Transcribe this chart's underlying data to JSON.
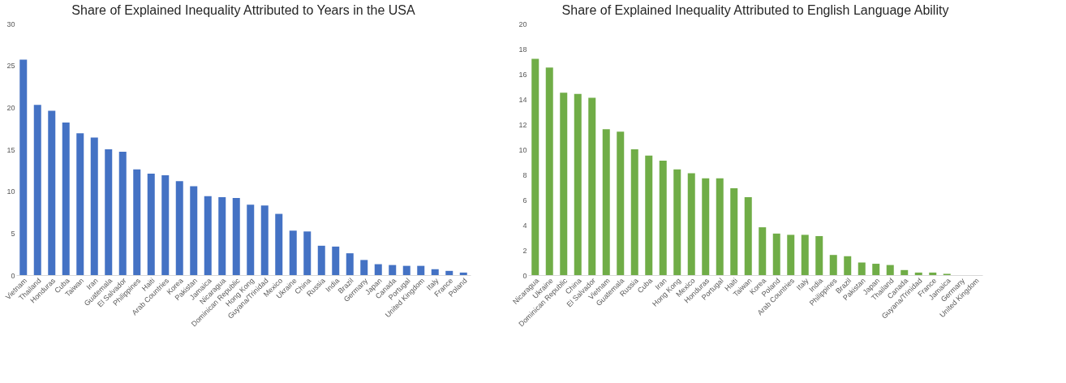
{
  "chart_data": [
    {
      "type": "bar",
      "title": "Share of Explained Inequality Attributed to Years in the USA",
      "categories": [
        "Vietnam",
        "Thailand",
        "Honduras",
        "Cuba",
        "Taiwan",
        "Iran",
        "Guatemala",
        "El Salvador",
        "Philippines",
        "Haiti",
        "Arab Countries",
        "Korea",
        "Pakistan",
        "Jamaica",
        "Nicaragua",
        "Dominican Republic",
        "Hong Kong",
        "Guyana/Trinidad",
        "Mexico",
        "Ukraine",
        "China",
        "Russia",
        "India",
        "Brazil",
        "Germany",
        "Japan",
        "Canada",
        "Portugal",
        "United Kingdom",
        "Italy",
        "France",
        "Poland"
      ],
      "values": [
        25.7,
        20.3,
        19.6,
        18.2,
        16.9,
        16.4,
        15.0,
        14.7,
        12.6,
        12.1,
        11.9,
        11.2,
        10.6,
        9.4,
        9.3,
        9.2,
        8.4,
        8.3,
        7.3,
        5.3,
        5.2,
        3.5,
        3.4,
        2.6,
        1.8,
        1.3,
        1.2,
        1.1,
        1.1,
        0.7,
        0.5,
        0.3
      ],
      "color": "#4472c4",
      "ylim": [
        0,
        30
      ],
      "yticks": [
        0,
        5,
        10,
        15,
        20,
        25,
        30
      ],
      "grid": false
    },
    {
      "type": "bar",
      "title": "Share of Explained Inequality Attributed to English Language Ability",
      "categories": [
        "Nicaragua",
        "Ukraine",
        "Dominican Republic",
        "China",
        "El Salvador",
        "Vietnam",
        "Guatemala",
        "Russia",
        "Cuba",
        "Iran",
        "Hong Kong",
        "Mexico",
        "Honduras",
        "Portugal",
        "Haiti",
        "Taiwan",
        "Korea",
        "Poland",
        "Arab Countries",
        "Italy",
        "India",
        "Philippines",
        "Brazil",
        "Pakistan",
        "Japan",
        "Thailand",
        "Canada",
        "Guyana/Trinidad",
        "France",
        "Jamaica",
        "Germany",
        "United Kingdom"
      ],
      "values": [
        17.2,
        16.5,
        14.5,
        14.4,
        14.1,
        11.6,
        11.4,
        10.0,
        9.5,
        9.1,
        8.4,
        8.1,
        7.7,
        7.7,
        6.9,
        6.2,
        3.8,
        3.3,
        3.2,
        3.2,
        3.1,
        1.6,
        1.5,
        1.0,
        0.9,
        0.8,
        0.4,
        0.2,
        0.2,
        0.1,
        0,
        0
      ],
      "color": "#70ad47",
      "ylim": [
        0,
        20
      ],
      "yticks": [
        0,
        2,
        4,
        6,
        8,
        10,
        12,
        14,
        16,
        18,
        20
      ],
      "grid": false
    }
  ]
}
